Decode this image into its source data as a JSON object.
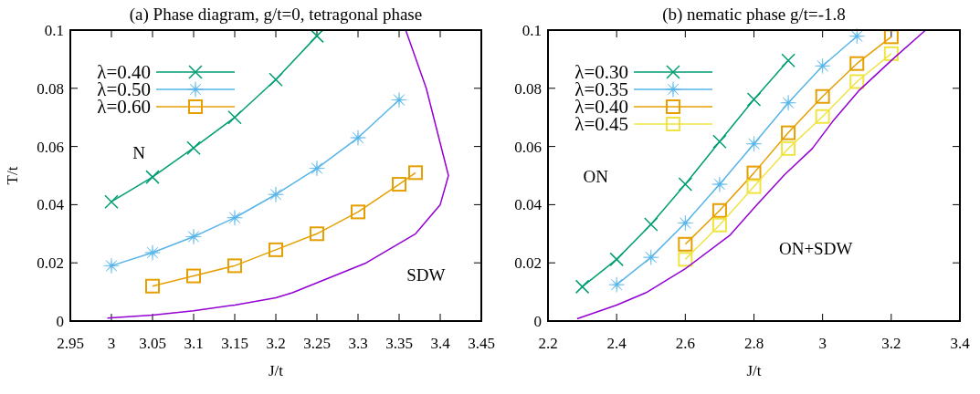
{
  "chart_data": [
    {
      "type": "line",
      "title": "(a) Phase diagram, g/t=0, tetragonal phase",
      "xlabel": "J/t",
      "ylabel": "T/t",
      "legend": "top left",
      "line_style": "solid",
      "xlim": [
        2.95,
        3.45
      ],
      "xticks": [
        2.95,
        3,
        3.05,
        3.1,
        3.15,
        3.2,
        3.25,
        3.3,
        3.35,
        3.4,
        3.45
      ],
      "ylim": [
        0,
        0.1
      ],
      "yticks": [
        0,
        0.02,
        0.04,
        0.06,
        0.08,
        0.1
      ],
      "annotations": [
        "N",
        "SDW"
      ],
      "series": [
        {
          "name": "λ=0.40",
          "color": "#009e73",
          "marker": "cross",
          "x": [
            3,
            3.05,
            3.1,
            3.15,
            3.2,
            3.25
          ],
          "values": [
            0.041,
            0.0495,
            0.0595,
            0.07,
            0.083,
            0.098
          ]
        },
        {
          "name": "λ=0.50",
          "color": "#56b4e9",
          "marker": "star",
          "x": [
            3,
            3.05,
            3.1,
            3.15,
            3.2,
            3.25,
            3.3,
            3.35
          ],
          "values": [
            0.019,
            0.0235,
            0.029,
            0.0355,
            0.0435,
            0.0525,
            0.063,
            0.076
          ]
        },
        {
          "name": "λ=0.60",
          "color": "#e69f00",
          "marker": "square",
          "x": [
            3.05,
            3.1,
            3.15,
            3.2,
            3.25,
            3.3,
            3.35,
            3.37
          ],
          "values": [
            0.012,
            0.0155,
            0.019,
            0.0245,
            0.03,
            0.0375,
            0.047,
            0.051
          ]
        },
        {
          "color": "#9400d3",
          "marker": "none",
          "x": [
            2.995,
            3.05,
            3.1,
            3.15,
            3.2,
            3.22,
            3.31,
            3.37,
            3.4,
            3.41,
            3.383,
            3.358
          ],
          "values": [
            0.001,
            0.002,
            0.0035,
            0.0055,
            0.008,
            0.0097,
            0.02,
            0.03,
            0.04,
            0.05,
            0.08,
            0.1
          ]
        }
      ]
    },
    {
      "type": "line",
      "title": "(b) nematic phase g/t=-1.8",
      "xlabel": "J/t",
      "legend": "top left",
      "line_style": "solid",
      "xlim": [
        2.2,
        3.4
      ],
      "xticks": [
        2.2,
        2.4,
        2.6,
        2.8,
        3,
        3.2,
        3.4
      ],
      "ylim": [
        0,
        0.1
      ],
      "yticks": [
        0,
        0.02,
        0.04,
        0.06,
        0.08,
        0.1
      ],
      "annotations": [
        "ON",
        "ON+SDW"
      ],
      "series": [
        {
          "name": "λ=0.30",
          "color": "#009e73",
          "marker": "cross",
          "x": [
            2.3,
            2.4,
            2.5,
            2.6,
            2.7,
            2.8,
            2.9
          ],
          "values": [
            0.0118,
            0.0212,
            0.0332,
            0.047,
            0.0617,
            0.0762,
            0.0896
          ]
        },
        {
          "name": "λ=0.35",
          "color": "#56b4e9",
          "marker": "star",
          "x": [
            2.4,
            2.5,
            2.6,
            2.7,
            2.8,
            2.9,
            3,
            3.1
          ],
          "values": [
            0.0125,
            0.0219,
            0.0337,
            0.047,
            0.0609,
            0.075,
            0.0877,
            0.0979
          ]
        },
        {
          "name": "λ=0.40",
          "color": "#e69f00",
          "marker": "square",
          "x": [
            2.6,
            2.7,
            2.8,
            2.9,
            3,
            3.1,
            3.2
          ],
          "values": [
            0.0264,
            0.038,
            0.0509,
            0.0647,
            0.0772,
            0.0885,
            0.0977
          ]
        },
        {
          "name": "λ=0.45",
          "color": "#f0e442",
          "marker": "square",
          "x": [
            2.6,
            2.7,
            2.8,
            2.9,
            3,
            3.1,
            3.2
          ],
          "values": [
            0.0212,
            0.033,
            0.0462,
            0.0593,
            0.0703,
            0.0823,
            0.0919
          ]
        },
        {
          "color": "#9400d3",
          "marker": "none",
          "x": [
            2.285,
            2.4,
            2.485,
            2.6,
            2.73,
            2.805,
            2.89,
            2.97,
            3.03,
            3.105,
            3.205,
            3.3
          ],
          "values": [
            0.0008,
            0.0055,
            0.0097,
            0.018,
            0.0295,
            0.0395,
            0.0504,
            0.0593,
            0.0687,
            0.0791,
            0.0901,
            0.1
          ]
        }
      ]
    }
  ]
}
